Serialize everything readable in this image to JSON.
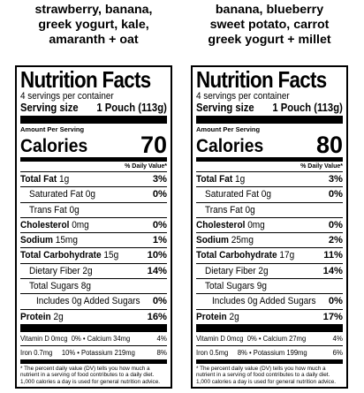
{
  "left": {
    "heading": [
      "strawberry, banana,",
      "greek yogurt, kale,",
      "amaranth + oat"
    ],
    "title": "Nutrition Facts",
    "servings": "4 servings per container",
    "serving_label": "Serving size",
    "serving_value": "1 Pouch (113g)",
    "amount_per_serving": "Amount Per Serving",
    "calories_label": "Calories",
    "calories": "70",
    "dv_header": "% Daily Value*",
    "total_fat": {
      "label": "Total Fat",
      "amount": "1g",
      "pct": "3%"
    },
    "sat_fat": {
      "label": "Saturated Fat 0g",
      "pct": "0%"
    },
    "trans_fat": {
      "label": "Trans Fat 0g"
    },
    "cholesterol": {
      "label": "Cholesterol",
      "amount": "0mg",
      "pct": "0%"
    },
    "sodium": {
      "label": "Sodium",
      "amount": "15mg",
      "pct": "1%"
    },
    "carb": {
      "label": "Total Carbohydrate",
      "amount": "15g",
      "pct": "10%"
    },
    "fiber": {
      "label": "Dietary Fiber 2g",
      "pct": "14%"
    },
    "sugars": {
      "label": "Total Sugars 8g"
    },
    "added_sugars": {
      "label": "Includes 0g Added Sugars",
      "pct": "0%"
    },
    "protein": {
      "label": "Protein",
      "amount": "2g",
      "pct": "16%"
    },
    "vit_row1": {
      "left": "Vitamin D 0mcg",
      "mid": "0% • Calcium 34mg",
      "pct": "4%"
    },
    "vit_row2": {
      "left": "Iron 0.7mg",
      "mid": "10% • Potassium 219mg",
      "pct": "8%"
    },
    "footnote": "* The percent daily value (DV) tells you how much a nutrient in a serving of food contributes to a daily diet. 1,000 calories a day is used for general nutrition advice."
  },
  "right": {
    "heading": [
      "banana, blueberry",
      "sweet potato, carrot",
      "greek yogurt + millet"
    ],
    "title": "Nutrition Facts",
    "servings": "4 servings per container",
    "serving_label": "Serving size",
    "serving_value": "1 Pouch (113g)",
    "amount_per_serving": "Amount Per Serving",
    "calories_label": "Calories",
    "calories": "80",
    "dv_header": "% Daily Value*",
    "total_fat": {
      "label": "Total Fat",
      "amount": "1g",
      "pct": "3%"
    },
    "sat_fat": {
      "label": "Saturated Fat 0g",
      "pct": "0%"
    },
    "trans_fat": {
      "label": "Trans Fat 0g"
    },
    "cholesterol": {
      "label": "Cholesterol",
      "amount": "0mg",
      "pct": "0%"
    },
    "sodium": {
      "label": "Sodium",
      "amount": "25mg",
      "pct": "2%"
    },
    "carb": {
      "label": "Total Carbohydrate",
      "amount": "17g",
      "pct": "11%"
    },
    "fiber": {
      "label": "Dietary Fiber 2g",
      "pct": "14%"
    },
    "sugars": {
      "label": "Total Sugars 9g"
    },
    "added_sugars": {
      "label": "Includes 0g Added Sugars",
      "pct": "0%"
    },
    "protein": {
      "label": "Protein",
      "amount": "2g",
      "pct": "17%"
    },
    "vit_row1": {
      "left": "Vitamin D 0mcg",
      "mid": "0% • Calcium 27mg",
      "pct": "4%"
    },
    "vit_row2": {
      "left": "Iron 0.5mg",
      "mid": "8% • Potassium 199mg",
      "pct": "6%"
    },
    "footnote": "* The percent daily value (DV) tells you how much a nutrient in a serving of food contributes to a daily diet. 1,000 calories a day is used for general nutrition advice."
  }
}
